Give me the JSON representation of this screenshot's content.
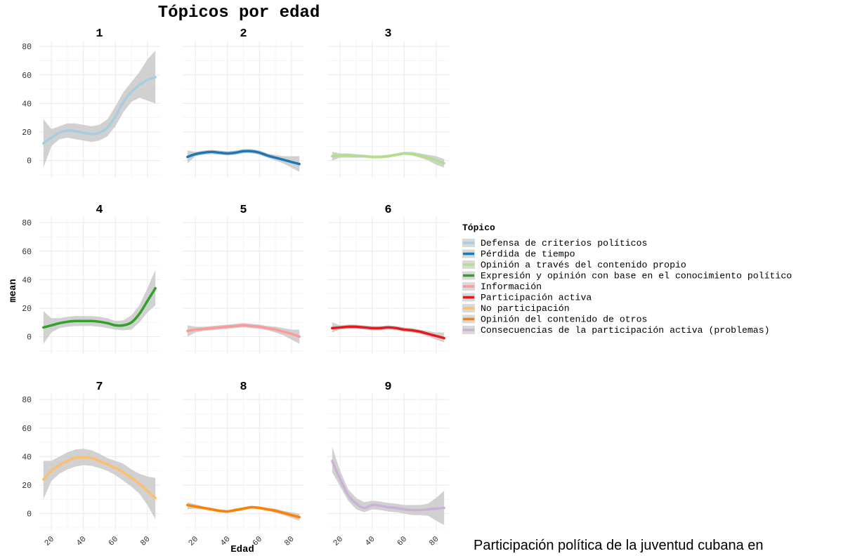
{
  "footer": {
    "caption": "Participación política de la juventud cubana en"
  },
  "chart_data": {
    "type": "line",
    "title": "Tópicos por edad",
    "xlabel": "Edad",
    "ylabel": "mean",
    "xlim": [
      12,
      88
    ],
    "ylim": [
      -12,
      84
    ],
    "x_ticks": [
      20,
      40,
      60,
      80
    ],
    "y_ticks": [
      0,
      20,
      40,
      60,
      80
    ],
    "grid": true,
    "smooth_with_confidence_band": true,
    "legend_position": "right",
    "legend_title": "Tópico",
    "panel_fill": "#ffffff",
    "band_color": "#c9c9c9",
    "panels": [
      {
        "label": "1",
        "series_index": 0,
        "color": "#a6cee3",
        "x": [
          15,
          20,
          25,
          30,
          35,
          40,
          45,
          50,
          55,
          60,
          65,
          70,
          75,
          80,
          85
        ],
        "y": [
          12,
          16,
          19.5,
          21,
          20.5,
          19.5,
          18.5,
          19.5,
          23,
          31,
          41,
          48,
          53,
          56.5,
          58.5
        ],
        "lower": [
          -5,
          10,
          15,
          16,
          15,
          14,
          13,
          14,
          17,
          24,
          34,
          41,
          44,
          42,
          40
        ],
        "upper": [
          29,
          22,
          24,
          26,
          26,
          25,
          24,
          25,
          29,
          38,
          48,
          55,
          62,
          71,
          77
        ]
      },
      {
        "label": "2",
        "series_index": 1,
        "color": "#1f78b4",
        "x": [
          15,
          20,
          25,
          30,
          35,
          40,
          45,
          50,
          55,
          60,
          65,
          70,
          75,
          80,
          85
        ],
        "y": [
          2.5,
          4.5,
          5.5,
          6,
          5.5,
          5,
          5.5,
          6.5,
          6.5,
          5.5,
          3.5,
          2,
          0.5,
          -1,
          -2.5
        ],
        "lower": [
          -2,
          3,
          4,
          4.5,
          4,
          3.5,
          4,
          5,
          5,
          4,
          2,
          0,
          -2,
          -5,
          -8
        ],
        "upper": [
          7,
          6,
          7,
          7.5,
          7,
          6.5,
          7,
          8,
          8,
          7,
          5,
          4,
          3,
          3,
          3
        ]
      },
      {
        "label": "3",
        "series_index": 2,
        "color": "#b2df8a",
        "x": [
          15,
          20,
          25,
          30,
          35,
          40,
          45,
          50,
          55,
          60,
          65,
          70,
          75,
          80,
          85
        ],
        "y": [
          3,
          3.5,
          3.5,
          3,
          3,
          2.5,
          2.5,
          3,
          4,
          5,
          4.5,
          3.5,
          2,
          0,
          -2
        ],
        "lower": [
          0,
          2,
          2,
          2,
          2,
          1.5,
          1.5,
          2,
          3,
          4,
          3.5,
          2,
          0,
          -3,
          -5
        ],
        "upper": [
          6,
          5,
          5,
          4.5,
          4,
          3.5,
          3.5,
          4,
          5,
          6,
          6,
          5,
          4,
          3,
          1
        ]
      },
      {
        "label": "4",
        "series_index": 3,
        "color": "#33a02c",
        "x": [
          15,
          20,
          25,
          30,
          35,
          40,
          45,
          50,
          55,
          60,
          65,
          70,
          75,
          80,
          85
        ],
        "y": [
          6.5,
          8,
          9.5,
          10.5,
          11,
          11,
          11,
          10.5,
          9.5,
          8,
          8,
          10,
          16,
          25,
          34
        ],
        "lower": [
          -5,
          3,
          6,
          7,
          7.5,
          7.5,
          7.5,
          7,
          6,
          5,
          4.5,
          5,
          10,
          17,
          22
        ],
        "upper": [
          18,
          13,
          13,
          14,
          14.5,
          14.5,
          14.5,
          14,
          13,
          11,
          11.5,
          15,
          22,
          34,
          47
        ]
      },
      {
        "label": "5",
        "series_index": 4,
        "color": "#fb9a99",
        "x": [
          15,
          20,
          25,
          30,
          35,
          40,
          45,
          50,
          55,
          60,
          65,
          70,
          75,
          80,
          85
        ],
        "y": [
          4,
          5,
          5.5,
          6,
          6.5,
          7,
          7.5,
          8,
          7.5,
          7,
          6,
          5,
          3.5,
          2,
          0
        ],
        "lower": [
          0,
          3,
          4,
          4.5,
          5,
          5.5,
          6,
          6.5,
          6,
          5.5,
          4.5,
          3,
          1,
          -2,
          -5
        ],
        "upper": [
          8,
          7,
          7,
          7.5,
          8,
          8.5,
          9,
          9.5,
          9,
          8.5,
          7.5,
          7,
          6,
          5,
          5
        ]
      },
      {
        "label": "6",
        "series_index": 5,
        "color": "#e31a1c",
        "x": [
          15,
          20,
          25,
          30,
          35,
          40,
          45,
          50,
          55,
          60,
          65,
          70,
          75,
          80,
          85
        ],
        "y": [
          6,
          6.5,
          7,
          7,
          6.5,
          6,
          6,
          6.5,
          6,
          5,
          4.5,
          3.5,
          2,
          0.5,
          -1
        ],
        "lower": [
          3,
          5,
          5.5,
          5.5,
          5,
          4.5,
          4.5,
          5,
          4.5,
          3.5,
          3,
          2,
          0,
          -2,
          -4
        ],
        "upper": [
          10,
          8,
          8.5,
          8.5,
          8,
          7.5,
          7.5,
          8,
          7.5,
          6.5,
          6,
          5,
          4,
          3,
          3
        ]
      },
      {
        "label": "7",
        "series_index": 6,
        "color": "#fdbf6f",
        "x": [
          15,
          20,
          25,
          30,
          35,
          40,
          45,
          50,
          55,
          60,
          65,
          70,
          75,
          80,
          85
        ],
        "y": [
          24,
          30,
          34,
          37,
          39,
          39.5,
          39,
          37,
          34.5,
          32,
          29,
          25,
          21,
          16,
          11
        ],
        "lower": [
          10,
          23,
          28,
          31,
          33,
          34,
          33.5,
          32,
          30,
          27,
          23,
          19,
          14,
          6,
          -4
        ],
        "upper": [
          37,
          37,
          40,
          43,
          45,
          45.5,
          44.5,
          42,
          39,
          37,
          35,
          31,
          28,
          26,
          25
        ]
      },
      {
        "label": "8",
        "series_index": 7,
        "color": "#ff7f00",
        "x": [
          15,
          20,
          25,
          30,
          35,
          40,
          45,
          50,
          55,
          60,
          65,
          70,
          75,
          80,
          85
        ],
        "y": [
          6,
          5,
          4,
          3,
          2,
          1.5,
          2.5,
          3.5,
          4.5,
          4,
          3,
          2,
          0.5,
          -1,
          -2.5
        ],
        "lower": [
          3,
          3.5,
          3,
          2,
          1,
          0.5,
          1.5,
          2.5,
          3.5,
          3,
          2,
          0.5,
          -1,
          -3,
          -5
        ],
        "upper": [
          8,
          6.5,
          5,
          4,
          3,
          2.5,
          3.5,
          4.5,
          5.5,
          5,
          4,
          3.5,
          2,
          1,
          0
        ]
      },
      {
        "label": "9",
        "series_index": 8,
        "color": "#cab2d6",
        "x": [
          15,
          20,
          25,
          30,
          35,
          40,
          45,
          50,
          55,
          60,
          65,
          70,
          75,
          80,
          85
        ],
        "y": [
          37,
          24,
          13,
          7,
          4,
          6,
          5.5,
          4.5,
          4,
          3,
          2.5,
          2.5,
          3,
          3.5,
          4
        ],
        "lower": [
          29,
          19,
          9,
          3,
          1,
          3,
          2.5,
          1.5,
          1,
          0,
          -1,
          -1,
          -1.5,
          -5,
          -8
        ],
        "upper": [
          47,
          30,
          17,
          11,
          8,
          9,
          8.5,
          7.5,
          7,
          6,
          6,
          6,
          7,
          11,
          16
        ]
      }
    ],
    "legend": [
      {
        "label": "Defensa de criterios políticos",
        "color": "#a6cee3"
      },
      {
        "label": "Pérdida de tiempo",
        "color": "#1f78b4"
      },
      {
        "label": "Opinión a través del contenido propio",
        "color": "#b2df8a"
      },
      {
        "label": "Expresión y opinión con base en el conocimiento político",
        "color": "#33a02c"
      },
      {
        "label": "Información",
        "color": "#fb9a99"
      },
      {
        "label": "Participación activa",
        "color": "#e31a1c"
      },
      {
        "label": "No participación",
        "color": "#fdbf6f"
      },
      {
        "label": "Opinión del contenido de otros",
        "color": "#ff7f00"
      },
      {
        "label": "Consecuencias de la participación activa (problemas)",
        "color": "#cab2d6"
      }
    ]
  }
}
